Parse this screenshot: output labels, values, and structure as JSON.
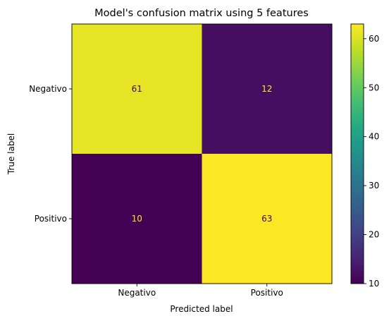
{
  "chart_data": {
    "type": "heatmap",
    "title": "Model's confusion matrix using 5 features",
    "xlabel": "Predicted label",
    "ylabel": "True label",
    "x_categories": [
      "Negativo",
      "Positivo"
    ],
    "y_categories": [
      "Negativo",
      "Positivo"
    ],
    "values": [
      [
        61,
        12
      ],
      [
        10,
        63
      ]
    ],
    "colormap": "viridis",
    "colorbar": {
      "range": [
        10,
        63
      ],
      "ticks": [
        10,
        20,
        30,
        40,
        50,
        60
      ]
    },
    "grid": false,
    "legend": "colorbar-right"
  }
}
